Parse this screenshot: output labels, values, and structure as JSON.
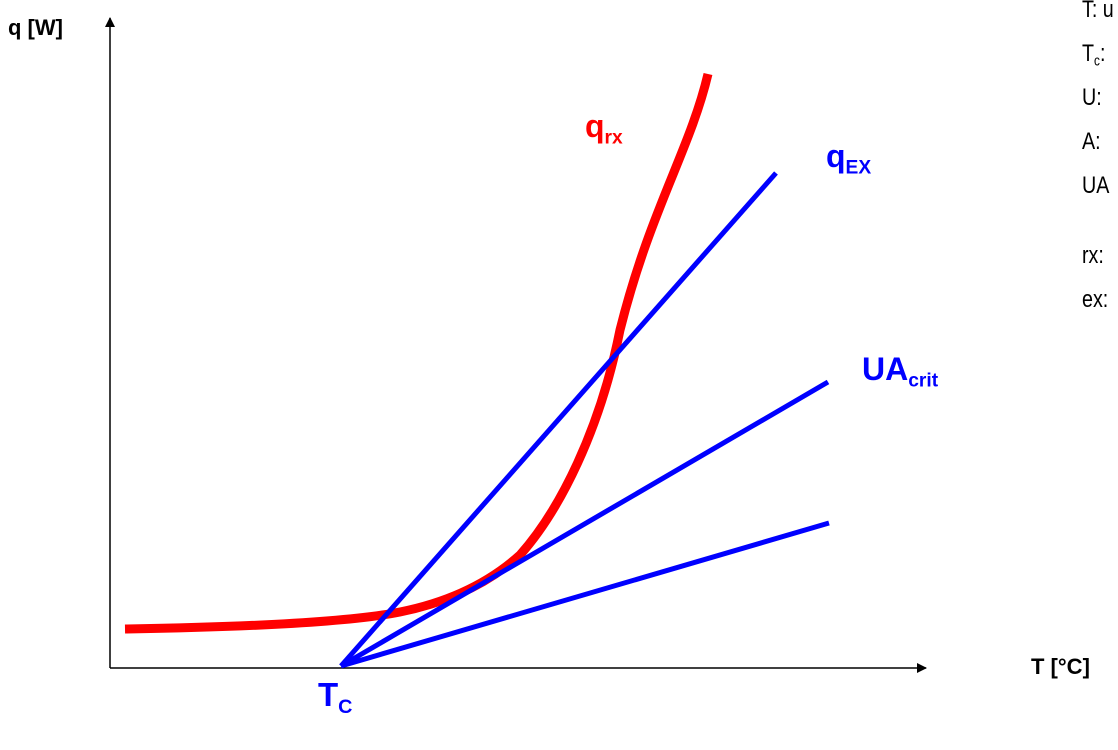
{
  "axes": {
    "y_label": "q [W]",
    "x_label": "T [°C]",
    "tc_label_main": "T",
    "tc_label_sub": "C"
  },
  "labels": {
    "qrx_main": "q",
    "qrx_sub": "rx",
    "qex_main": "q",
    "qex_sub": "EX",
    "uacrit_main": "UA",
    "uacrit_sub": "crit"
  },
  "legend": {
    "t": "T: u",
    "tc_main": "T",
    "tc_sub": "c",
    "tc_rest": ":",
    "u": "U:",
    "a": "A:",
    "ua": "UA",
    "rx": "rx:",
    "ex": "ex:"
  },
  "colors": {
    "reaction_curve": "#ff0000",
    "exchange_lines": "#0000ff",
    "axes": "#000000",
    "qrx_label": "#ff0000",
    "blue_labels": "#0000ff"
  }
}
